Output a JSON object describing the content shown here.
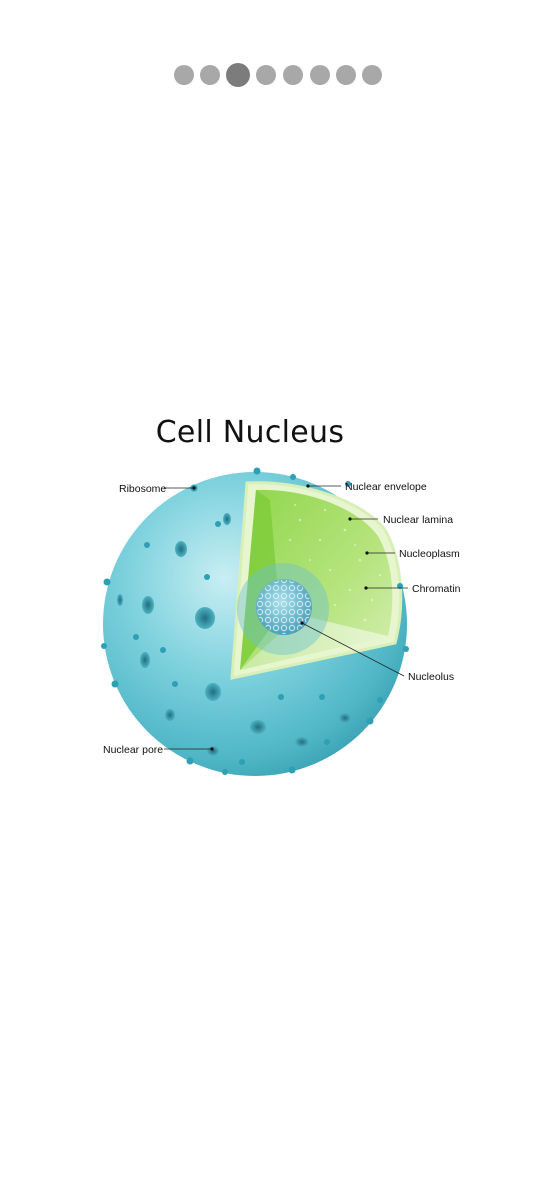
{
  "pager": {
    "total": 8,
    "active_index": 2
  },
  "diagram": {
    "title": "Cell Nucleus",
    "labels": {
      "ribosome": "Ribosome",
      "nuclear_envelope": "Nuclear envelope",
      "nuclear_lamina": "Nuclear lamina",
      "nucleoplasm": "Nucleoplasm",
      "chromatin": "Chromatin",
      "nucleolus": "Nucleolus",
      "nuclear_pore": "Nuclear pore"
    }
  },
  "colors": {
    "sphere": "#5fc4d3",
    "cutaway": "#a6dd6b",
    "nucleolus": "#7ac4d8",
    "dot_inactive": "#a8a8a8",
    "dot_active": "#7c7c7c"
  }
}
